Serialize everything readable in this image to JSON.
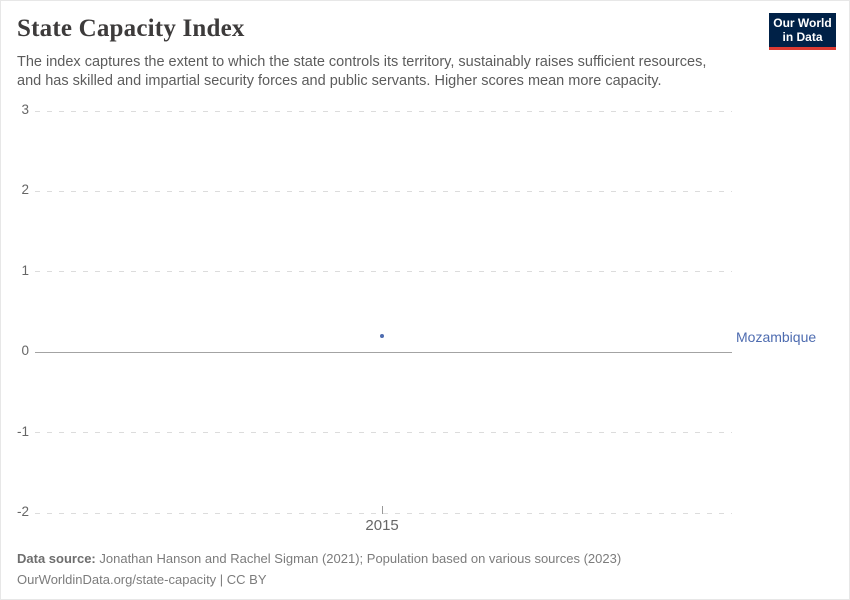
{
  "header": {
    "title": "State Capacity Index",
    "subtitle_line1": "The index captures the extent to which the state controls its territory, sustainably raises sufficient resources,",
    "subtitle_line2": "and has skilled and impartial security forces and public servants. Higher scores mean more capacity."
  },
  "logo": {
    "line1": "Our World",
    "line2": "in Data",
    "bg_color": "#002147",
    "accent_color": "#dc3a32"
  },
  "chart_data": {
    "type": "scatter",
    "title": "State Capacity Index",
    "xlabel": "",
    "ylabel": "",
    "ylim": [
      -2,
      3
    ],
    "yticks": [
      3,
      2,
      1,
      0,
      -1,
      -2
    ],
    "xticks": [
      2015
    ],
    "grid": "horizontal-dashed",
    "legend_position": "entity-label-right",
    "series": [
      {
        "name": "Mozambique",
        "color": "#4e6cb0",
        "x": [
          2015
        ],
        "y": [
          0.2
        ]
      }
    ]
  },
  "footer": {
    "source_label": "Data source:",
    "source_text": "Jonathan Hanson and Rachel Sigman (2021); Population based on various sources (2023)",
    "url_line": "OurWorldinData.org/state-capacity | CC BY"
  }
}
